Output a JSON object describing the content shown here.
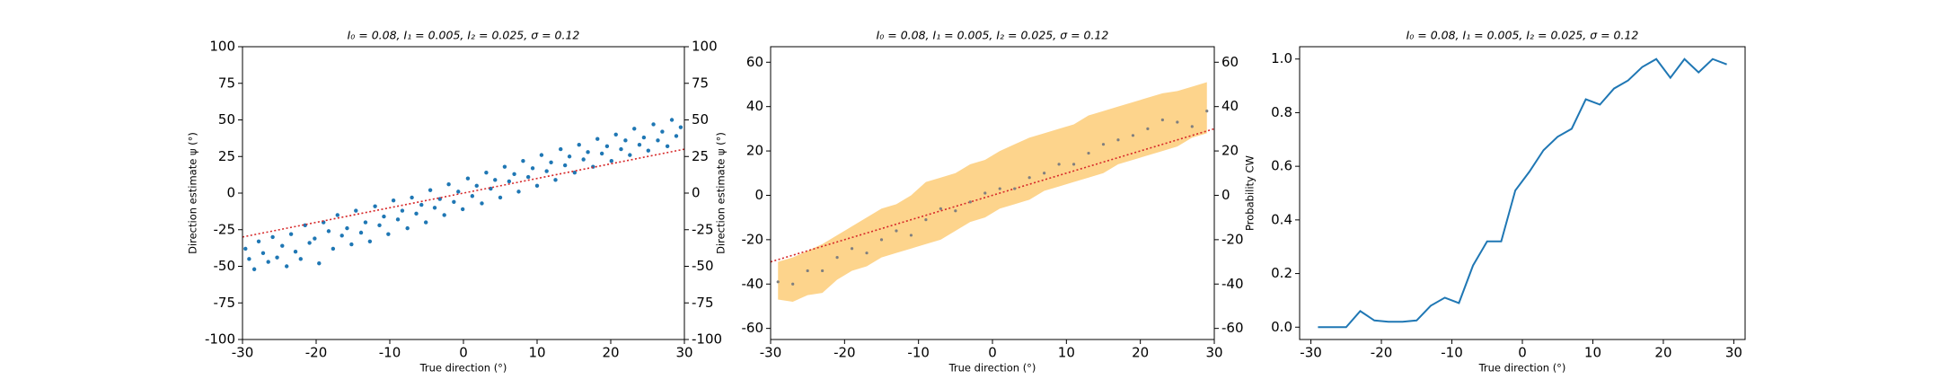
{
  "chart_data": [
    {
      "type": "scatter",
      "title": "I₀ = 0.08, I₁ = 0.005, I₂ = 0.025, σ = 0.12",
      "x_label": "True direction (°)",
      "y_label": "Direction estimate ψ (°)",
      "xlim": [
        -30,
        30
      ],
      "xticks": [
        -30,
        -20,
        -10,
        0,
        10,
        20,
        30
      ],
      "ylim": [
        -100,
        100
      ],
      "yticks": [
        -100,
        -75,
        -50,
        -25,
        0,
        25,
        50,
        75,
        100
      ],
      "y2lim": [
        -100,
        100
      ],
      "y2ticks": [
        -100,
        -75,
        -50,
        -25,
        0,
        25,
        50,
        75,
        100
      ],
      "color": "#1f77b4",
      "x": [
        -29.6,
        -29.1,
        -28.4,
        -27.8,
        -27.2,
        -26.5,
        -25.9,
        -25.3,
        -24.6,
        -24.0,
        -23.4,
        -22.8,
        -22.1,
        -21.5,
        -20.9,
        -20.2,
        -19.6,
        -19.0,
        -18.3,
        -17.7,
        -17.1,
        -16.5,
        -15.8,
        -15.2,
        -14.6,
        -13.9,
        -13.3,
        -12.7,
        -12.0,
        -11.4,
        -10.8,
        -10.2,
        -9.5,
        -8.9,
        -8.3,
        -7.6,
        -7.0,
        -6.4,
        -5.7,
        -5.1,
        -4.5,
        -3.9,
        -3.2,
        -2.6,
        -2.0,
        -1.3,
        -0.7,
        -0.1,
        0.6,
        1.2,
        1.8,
        2.5,
        3.1,
        3.7,
        4.3,
        5.0,
        5.6,
        6.2,
        6.9,
        7.5,
        8.1,
        8.8,
        9.4,
        10.0,
        10.6,
        11.3,
        11.9,
        12.5,
        13.2,
        13.8,
        14.4,
        15.1,
        15.7,
        16.3,
        16.9,
        17.6,
        18.2,
        18.8,
        19.5,
        20.1,
        20.7,
        21.4,
        22.0,
        22.6,
        23.2,
        23.9,
        24.5,
        25.1,
        25.8,
        26.4,
        27.0,
        27.7,
        28.3,
        28.9,
        29.5
      ],
      "values": [
        -38,
        -45,
        -52,
        -33,
        -41,
        -47,
        -30,
        -44,
        -36,
        -50,
        -28,
        -40,
        -45,
        -22,
        -34,
        -31,
        -48,
        -20,
        -26,
        -38,
        -15,
        -29,
        -24,
        -35,
        -12,
        -27,
        -20,
        -33,
        -9,
        -22,
        -16,
        -28,
        -5,
        -18,
        -12,
        -24,
        -3,
        -14,
        -8,
        -20,
        2,
        -10,
        -4,
        -15,
        6,
        -6,
        1,
        -11,
        10,
        -2,
        5,
        -7,
        14,
        3,
        9,
        -3,
        18,
        8,
        13,
        1,
        22,
        11,
        17,
        5,
        26,
        15,
        21,
        9,
        30,
        19,
        25,
        14,
        33,
        23,
        28,
        18,
        37,
        27,
        32,
        22,
        40,
        30,
        36,
        26,
        44,
        33,
        38,
        29,
        47,
        36,
        42,
        32,
        50,
        39,
        45
      ],
      "reference_line": {
        "x": [
          -30,
          30
        ],
        "values": [
          -30,
          30
        ],
        "color": "#d62728"
      }
    },
    {
      "type": "band",
      "title": "I₀ = 0.08, I₁ = 0.005, I₂ = 0.025, σ = 0.12",
      "x_label": "True direction (°)",
      "y_label": "Direction estimate ψ (°)",
      "xlim": [
        -30,
        30
      ],
      "xticks": [
        -30,
        -20,
        -10,
        0,
        10,
        20,
        30
      ],
      "ylim": [
        -65,
        67
      ],
      "yticks": [
        -60,
        -40,
        -20,
        0,
        20,
        40,
        60
      ],
      "y2lim": [
        -65,
        67
      ],
      "y2ticks": [
        -60,
        -40,
        -20,
        0,
        20,
        40,
        60
      ],
      "color": "#7f7f7f",
      "band_color": "#fdd48c",
      "x": [
        -29,
        -27,
        -25,
        -23,
        -21,
        -19,
        -17,
        -15,
        -13,
        -11,
        -9,
        -7,
        -5,
        -3,
        -1,
        1,
        3,
        5,
        7,
        9,
        11,
        13,
        15,
        17,
        19,
        21,
        23,
        25,
        27,
        29
      ],
      "values": [
        -39,
        -40,
        -34,
        -34,
        -28,
        -24,
        -26,
        -20,
        -16,
        -18,
        -11,
        -6,
        -7,
        -3,
        1,
        3,
        3,
        8,
        10,
        14,
        14,
        19,
        23,
        25,
        27,
        30,
        34,
        33,
        31,
        38
      ],
      "upper": [
        -30,
        -28,
        -25,
        -22,
        -18,
        -14,
        -10,
        -6,
        -4,
        0,
        6,
        8,
        10,
        14,
        16,
        20,
        23,
        26,
        28,
        30,
        32,
        36,
        38,
        40,
        42,
        44,
        46,
        47,
        49,
        51
      ],
      "lower": [
        -47,
        -48,
        -45,
        -44,
        -38,
        -34,
        -32,
        -28,
        -26,
        -24,
        -22,
        -20,
        -16,
        -12,
        -10,
        -6,
        -4,
        -2,
        2,
        4,
        6,
        8,
        10,
        14,
        16,
        18,
        20,
        22,
        26,
        28
      ],
      "reference_line": {
        "x": [
          -30,
          30
        ],
        "values": [
          -30,
          30
        ],
        "color": "#d62728"
      }
    },
    {
      "type": "line",
      "title": "I₀ = 0.08, I₁ = 0.005, I₂ = 0.025, σ = 0.12",
      "x_label": "True direction (°)",
      "y_label": "Probability CW",
      "xlim": [
        -31.6,
        31.6
      ],
      "xticks": [
        -30,
        -20,
        -10,
        0,
        10,
        20,
        30
      ],
      "ylim": [
        -0.046,
        1.046
      ],
      "yticks": [
        {
          "value": 0,
          "label": "0.0"
        },
        {
          "value": 0.2,
          "label": "0.2"
        },
        {
          "value": 0.4,
          "label": "0.4"
        },
        {
          "value": 0.6,
          "label": "0.6"
        },
        {
          "value": 0.8,
          "label": "0.8"
        },
        {
          "value": 1,
          "label": "1.0"
        }
      ],
      "color": "#1f77b4",
      "x": [
        -29,
        -27,
        -25,
        -23,
        -21,
        -19,
        -17,
        -15,
        -13,
        -11,
        -9,
        -7,
        -5,
        -3,
        -1,
        1,
        3,
        5,
        7,
        9,
        11,
        13,
        15,
        17,
        19,
        21,
        23,
        25,
        27,
        29
      ],
      "values": [
        0,
        0,
        0,
        0.06,
        0.025,
        0.02,
        0.02,
        0.025,
        0.08,
        0.11,
        0.09,
        0.23,
        0.32,
        0.32,
        0.51,
        0.58,
        0.66,
        0.71,
        0.74,
        0.85,
        0.83,
        0.89,
        0.92,
        0.97,
        1.0,
        0.93,
        1.0,
        0.95,
        1.0,
        0.98
      ]
    }
  ]
}
